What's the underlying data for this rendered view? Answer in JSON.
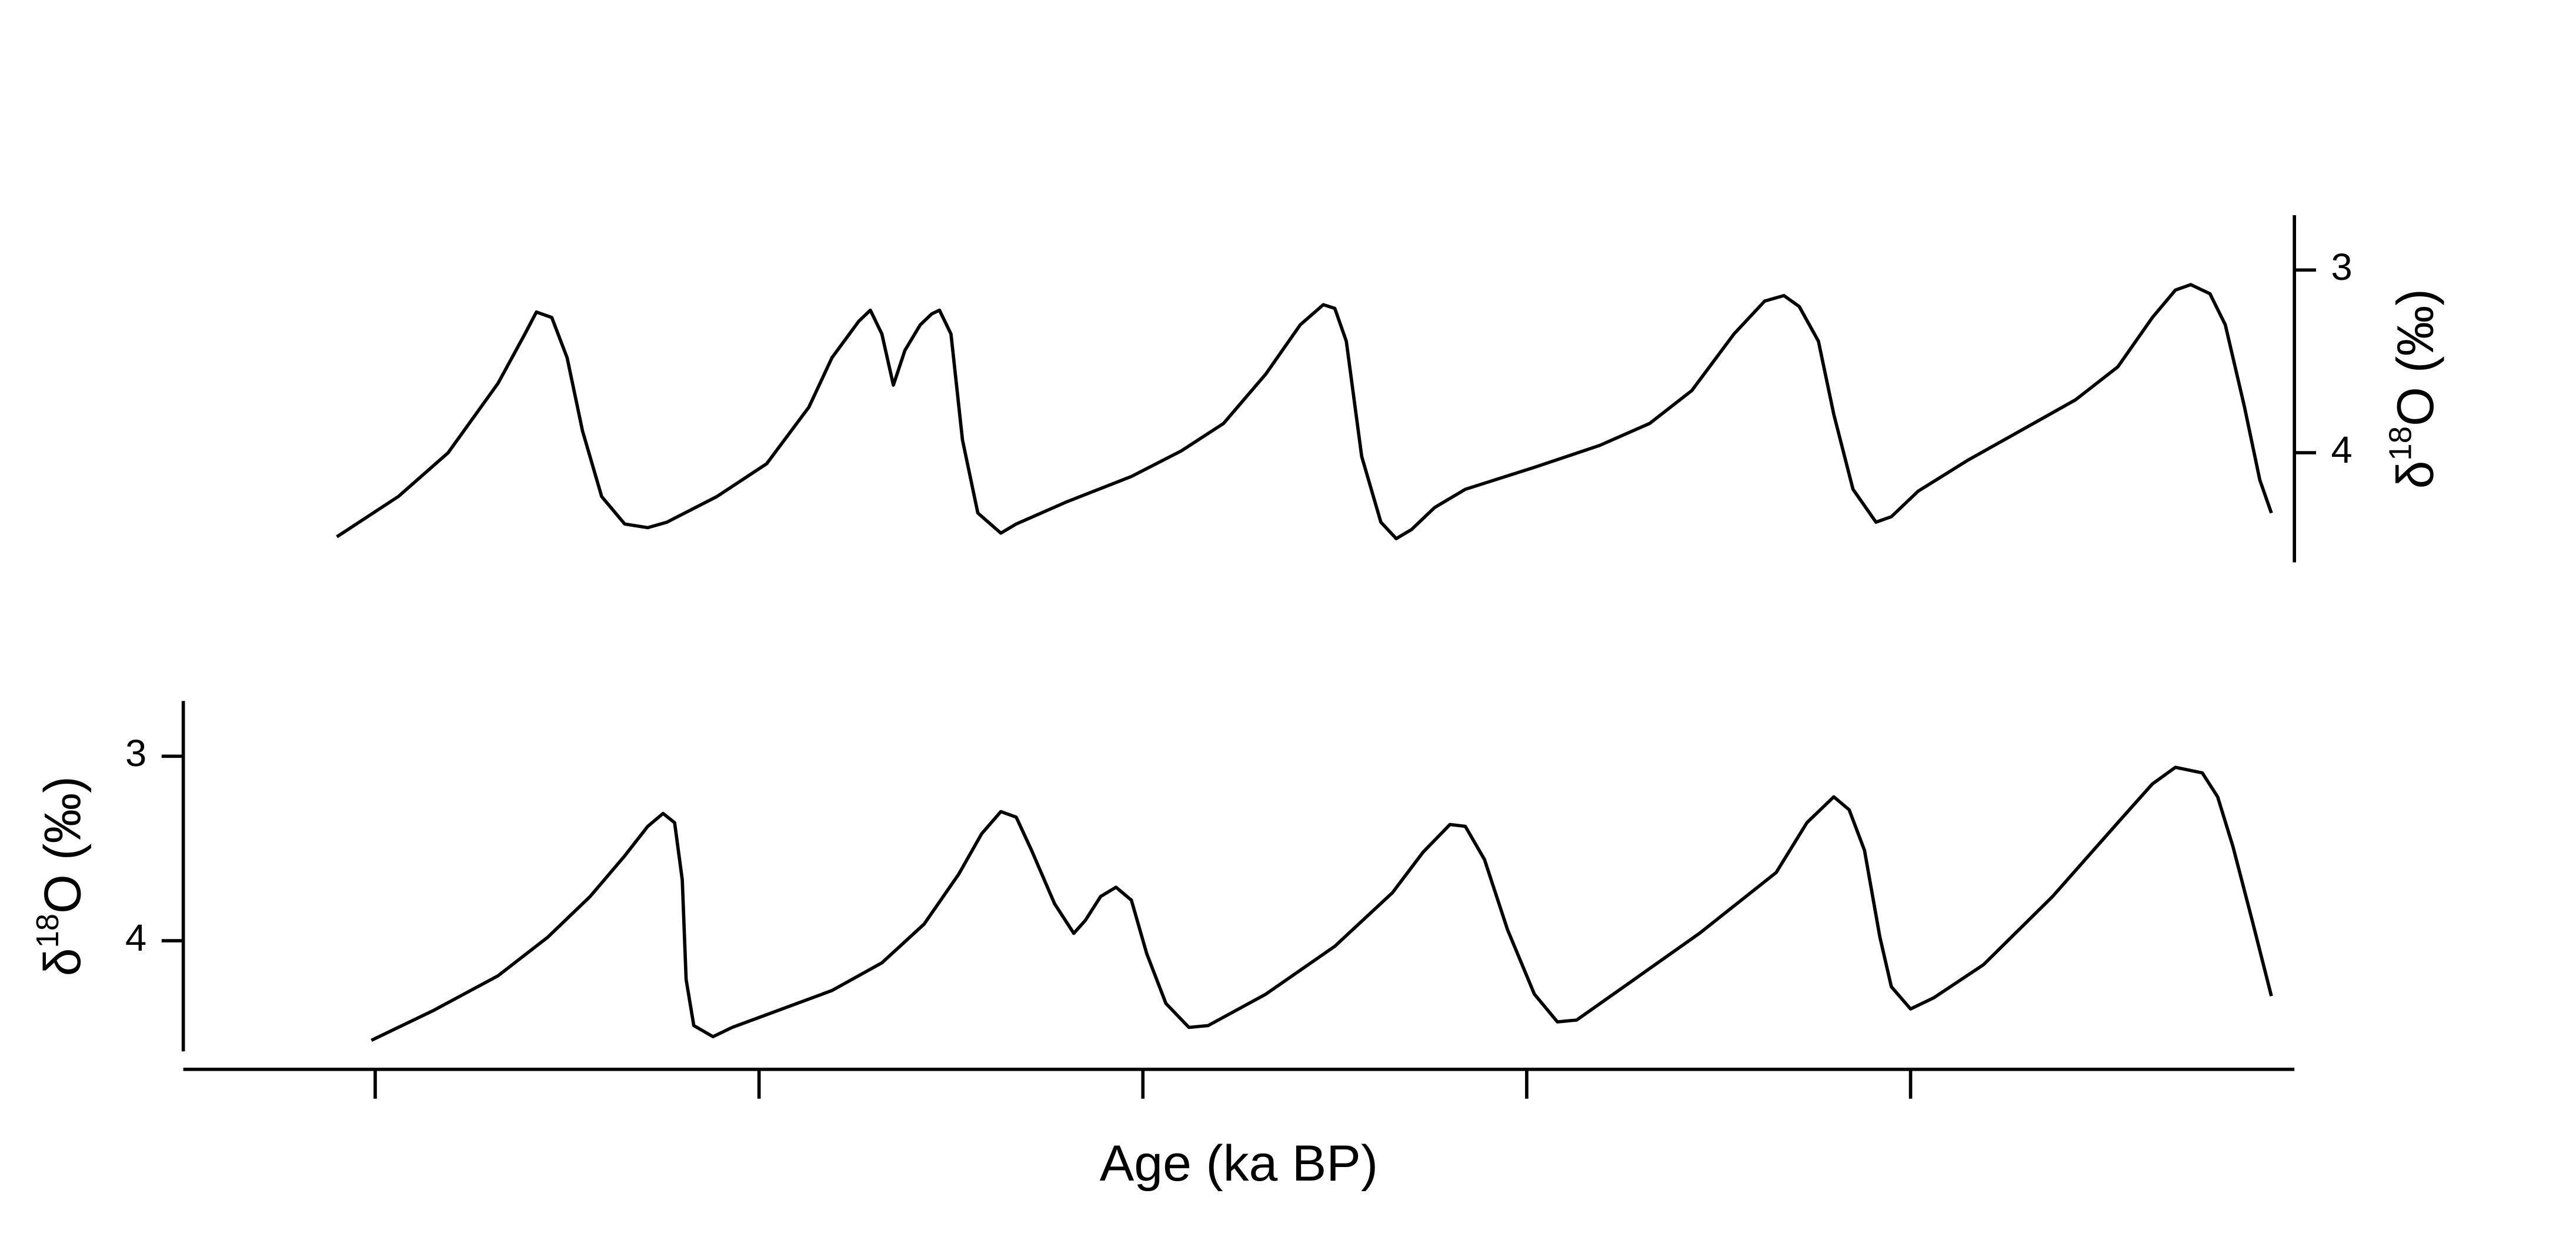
{
  "chart_data": [
    {
      "type": "line",
      "color": "#000000",
      "yaxis_side": "right",
      "ylabel": [
        "δ",
        "18",
        "O (‰)"
      ],
      "xlim": [
        -0.5,
        5.0
      ],
      "ylim": [
        4.6,
        2.7
      ],
      "yticks": [
        3,
        4
      ],
      "x": [
        -0.1,
        0.06,
        0.19,
        0.32,
        0.39,
        0.42,
        0.46,
        0.5,
        0.54,
        0.59,
        0.65,
        0.71,
        0.76,
        0.89,
        1.02,
        1.13,
        1.19,
        1.26,
        1.29,
        1.32,
        1.35,
        1.38,
        1.42,
        1.45,
        1.47,
        1.5,
        1.53,
        1.57,
        1.63,
        1.67,
        1.8,
        1.97,
        2.1,
        2.21,
        2.32,
        2.41,
        2.47,
        2.5,
        2.53,
        2.57,
        2.62,
        2.66,
        2.7,
        2.76,
        2.84,
        3.02,
        3.19,
        3.32,
        3.43,
        3.54,
        3.62,
        3.67,
        3.71,
        3.76,
        3.8,
        3.85,
        3.91,
        3.95,
        4.02,
        4.15,
        4.32,
        4.43,
        4.54,
        4.63,
        4.69,
        4.73,
        4.78,
        4.82,
        4.87,
        4.91,
        4.94
      ],
      "values": [
        4.46,
        4.24,
        4.0,
        3.62,
        3.35,
        3.23,
        3.26,
        3.48,
        3.88,
        4.24,
        4.39,
        4.41,
        4.38,
        4.24,
        4.06,
        3.75,
        3.48,
        3.28,
        3.22,
        3.35,
        3.63,
        3.44,
        3.3,
        3.24,
        3.22,
        3.35,
        3.93,
        4.33,
        4.44,
        4.39,
        4.27,
        4.13,
        3.99,
        3.84,
        3.57,
        3.3,
        3.19,
        3.21,
        3.39,
        4.02,
        4.38,
        4.47,
        4.42,
        4.3,
        4.2,
        4.08,
        3.96,
        3.84,
        3.66,
        3.35,
        3.17,
        3.14,
        3.2,
        3.39,
        3.79,
        4.2,
        4.38,
        4.35,
        4.21,
        4.04,
        3.84,
        3.71,
        3.53,
        3.26,
        3.11,
        3.08,
        3.13,
        3.3,
        3.75,
        4.15,
        4.33
      ]
    },
    {
      "type": "line",
      "color": "#000000",
      "yaxis_side": "left",
      "ylabel": [
        "δ",
        "18",
        "O (‰)"
      ],
      "xlabel": "Age (ka BP)",
      "xlim": [
        -0.5,
        5.0
      ],
      "xticks": [
        0,
        1,
        2,
        3,
        4
      ],
      "ylim": [
        4.6,
        2.7
      ],
      "yticks": [
        3,
        4
      ],
      "x": [
        -0.01,
        0.15,
        0.32,
        0.45,
        0.56,
        0.65,
        0.71,
        0.75,
        0.78,
        0.8,
        0.81,
        0.83,
        0.88,
        0.93,
        1.06,
        1.19,
        1.32,
        1.43,
        1.52,
        1.58,
        1.63,
        1.67,
        1.71,
        1.77,
        1.82,
        1.85,
        1.89,
        1.93,
        1.97,
        2.01,
        2.06,
        2.12,
        2.17,
        2.32,
        2.5,
        2.65,
        2.73,
        2.8,
        2.84,
        2.89,
        2.95,
        3.02,
        3.08,
        3.13,
        3.28,
        3.45,
        3.65,
        3.73,
        3.8,
        3.84,
        3.88,
        3.92,
        3.95,
        4.0,
        4.06,
        4.19,
        4.37,
        4.54,
        4.63,
        4.69,
        4.76,
        4.8,
        4.84,
        4.89,
        4.94
      ],
      "values": [
        4.54,
        4.38,
        4.19,
        3.98,
        3.76,
        3.54,
        3.38,
        3.31,
        3.36,
        3.67,
        4.21,
        4.46,
        4.52,
        4.47,
        4.37,
        4.27,
        4.12,
        3.91,
        3.64,
        3.42,
        3.3,
        3.33,
        3.51,
        3.8,
        3.96,
        3.89,
        3.76,
        3.71,
        3.78,
        4.07,
        4.34,
        4.47,
        4.46,
        4.29,
        4.03,
        3.74,
        3.52,
        3.37,
        3.38,
        3.56,
        3.94,
        4.29,
        4.44,
        4.43,
        4.21,
        3.96,
        3.63,
        3.36,
        3.22,
        3.29,
        3.51,
        3.98,
        4.25,
        4.37,
        4.31,
        4.13,
        3.76,
        3.36,
        3.15,
        3.06,
        3.09,
        3.22,
        3.49,
        3.89,
        4.3
      ]
    }
  ]
}
